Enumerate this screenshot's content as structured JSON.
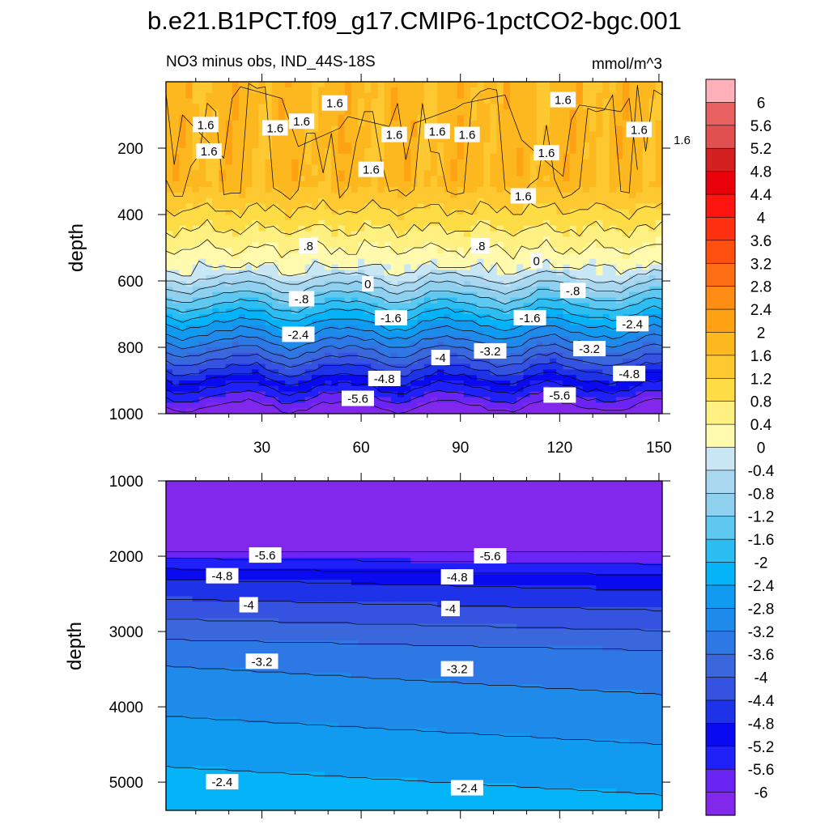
{
  "chart_data": {
    "type": "contour",
    "title": "b.e21.B1PCT.f09_g17.CMIP6-1pctCO2-bgc.001",
    "subtitle_left": "NO3 minus obs, IND_44S-18S",
    "subtitle_right": "mmol/m^3",
    "x_tick_labels": [
      "30",
      "60",
      "90",
      "120",
      "150"
    ],
    "x_ticks": [
      30,
      60,
      90,
      120,
      150
    ],
    "xlim": [
      1,
      151
    ],
    "colorbar_levels": [
      -6,
      -5.6,
      -5.2,
      -4.8,
      -4.4,
      -4,
      -3.6,
      -3.2,
      -2.8,
      -2.4,
      -2,
      -1.6,
      -1.2,
      -0.8,
      -0.4,
      0,
      0.4,
      0.8,
      1.2,
      1.6,
      2,
      2.4,
      2.8,
      3.2,
      3.6,
      4,
      4.4,
      4.8,
      5.2,
      5.6,
      6
    ],
    "colorbar_labels": [
      "-6",
      "-5.6",
      "-5.2",
      "-4.8",
      "-4.4",
      "-4",
      "-3.6",
      "-3.2",
      "-2.8",
      "-2.4",
      "-2",
      "-1.6",
      "-1.2",
      "-0.8",
      "-0.4",
      "0",
      "0.4",
      "0.8",
      "1.2",
      "1.6",
      "2",
      "2.4",
      "2.8",
      "3.2",
      "3.6",
      "4",
      "4.4",
      "4.8",
      "5.2",
      "5.6",
      "6"
    ],
    "colorbar_colors": [
      "#8228ec",
      "#6a24f4",
      "#2020f8",
      "#0a0af0",
      "#1e32e8",
      "#3553e0",
      "#3a68dc",
      "#2d78e4",
      "#1e8aea",
      "#119bf0",
      "#05b4f8",
      "#2cbef2",
      "#5ec8f0",
      "#8ed0ee",
      "#aad8f0",
      "#c8e6f4",
      "#fffaae",
      "#fff082",
      "#fedc46",
      "#fdc830",
      "#fcb81e",
      "#ffa214",
      "#ff8c14",
      "#ff6e14",
      "#ff5010",
      "#ff3010",
      "#ff1410",
      "#e8000a",
      "#d42020",
      "#e05050",
      "#e86060",
      "#ffb0b8"
    ],
    "panels": [
      {
        "name": "upper",
        "ylabel": "depth",
        "ylim": [
          0,
          1000
        ],
        "y_ticks": [
          200,
          400,
          600,
          800,
          1000
        ],
        "y_tick_labels": [
          "200",
          "400",
          "600",
          "800",
          "1000"
        ],
        "contour_labels": [
          {
            "text": "1.6",
            "x": 52,
            "y": 65
          },
          {
            "text": "1.6",
            "x": 121,
            "y": 55
          },
          {
            "text": "1.6",
            "x": 13,
            "y": 130
          },
          {
            "text": "1.6",
            "x": 34,
            "y": 140
          },
          {
            "text": "1.6",
            "x": 42,
            "y": 120
          },
          {
            "text": "1.6",
            "x": 70,
            "y": 160
          },
          {
            "text": "1.6",
            "x": 83,
            "y": 150
          },
          {
            "text": "1.6",
            "x": 92,
            "y": 160
          },
          {
            "text": "1.6",
            "x": 144,
            "y": 145
          },
          {
            "text": "1.6",
            "x": 157,
            "y": 175
          },
          {
            "text": "1.6",
            "x": 14,
            "y": 210
          },
          {
            "text": "1.6",
            "x": 63,
            "y": 265
          },
          {
            "text": "1.6",
            "x": 116,
            "y": 215
          },
          {
            "text": "1.6",
            "x": 109,
            "y": 345
          },
          {
            "text": ".8",
            "x": 44,
            "y": 495
          },
          {
            "text": ".8",
            "x": 96,
            "y": 495
          },
          {
            "text": "0",
            "x": 62,
            "y": 610
          },
          {
            "text": "0",
            "x": 113,
            "y": 540
          },
          {
            "text": "-.8",
            "x": 42,
            "y": 655
          },
          {
            "text": "-.8",
            "x": 124,
            "y": 630
          },
          {
            "text": "-1.6",
            "x": 69,
            "y": 712
          },
          {
            "text": "-1.6",
            "x": 111,
            "y": 712
          },
          {
            "text": "-2.4",
            "x": 41,
            "y": 762
          },
          {
            "text": "-2.4",
            "x": 142,
            "y": 730
          },
          {
            "text": "-3.2",
            "x": 99,
            "y": 812
          },
          {
            "text": "-3.2",
            "x": 129,
            "y": 805
          },
          {
            "text": "-4",
            "x": 84,
            "y": 832
          },
          {
            "text": "-4.8",
            "x": 67,
            "y": 895
          },
          {
            "text": "-4.8",
            "x": 141,
            "y": 880
          },
          {
            "text": "-5.6",
            "x": 59,
            "y": 955
          },
          {
            "text": "-5.6",
            "x": 120,
            "y": 945
          }
        ]
      },
      {
        "name": "lower",
        "ylabel": "depth",
        "ylim": [
          1000,
          5375
        ],
        "y_ticks": [
          1000,
          2000,
          3000,
          4000,
          5000
        ],
        "y_tick_labels": [
          "1000",
          "2000",
          "3000",
          "4000",
          "5000"
        ],
        "contour_labels": [
          {
            "text": "-5.6",
            "x": 31,
            "y": 1990
          },
          {
            "text": "-5.6",
            "x": 99,
            "y": 2000
          },
          {
            "text": "-4.8",
            "x": 18,
            "y": 2265
          },
          {
            "text": "-4.8",
            "x": 89,
            "y": 2280
          },
          {
            "text": "-4",
            "x": 26,
            "y": 2650
          },
          {
            "text": "-4",
            "x": 87,
            "y": 2700
          },
          {
            "text": "-3.2",
            "x": 30,
            "y": 3400
          },
          {
            "text": "-3.2",
            "x": 89,
            "y": 3500
          },
          {
            "text": "-2.4",
            "x": 18,
            "y": 5000
          },
          {
            "text": "-2.4",
            "x": 92,
            "y": 5080
          }
        ]
      }
    ]
  }
}
